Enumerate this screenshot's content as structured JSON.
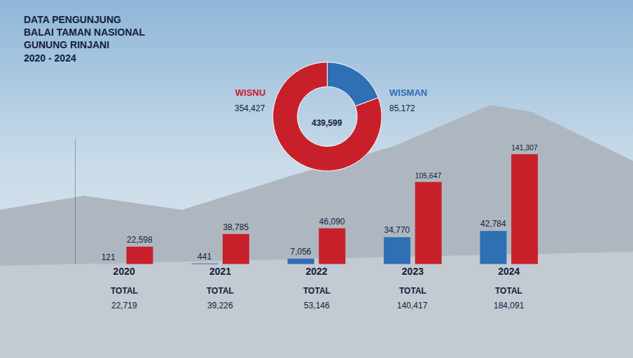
{
  "chart_data": [
    {
      "type": "pie",
      "title": "DATA PENGUNJUNG\nBALAI TAMAN NASIONAL\nGUNUNG RINJANI\n2020 - 2024",
      "categories": [
        "WISMAN",
        "WISNU"
      ],
      "values": [
        85172,
        354427
      ],
      "value_labels": [
        "85,172",
        "354,427"
      ],
      "colors": [
        "#2f6fb3",
        "#c8202a"
      ],
      "center_label": {
        "value": 439599,
        "label": "439,599"
      }
    },
    {
      "type": "bar",
      "categories": [
        "2020",
        "2021",
        "2022",
        "2023",
        "2024"
      ],
      "series": [
        {
          "name": "WISMAN",
          "color": "#2f6fb3",
          "values": [
            121,
            441,
            7056,
            34770,
            42784
          ],
          "value_labels": [
            "121",
            "441",
            "7,056",
            "34,770",
            "42,784"
          ]
        },
        {
          "name": "WISNU",
          "color": "#c8202a",
          "values": [
            22598,
            38785,
            46090,
            105647,
            141307
          ],
          "value_labels": [
            "22,598",
            "38,785",
            "46,090",
            "105,647",
            "141,307"
          ]
        }
      ],
      "totals": {
        "label": "TOTAL",
        "values": [
          22719,
          39226,
          53146,
          140417,
          184091
        ],
        "value_labels": [
          "22,719",
          "39,226",
          "53,146",
          "140,417",
          "184,091"
        ]
      },
      "ylim": [
        0,
        160000
      ],
      "data_labels": true,
      "tick_labels": "x",
      "grid": false
    }
  ]
}
